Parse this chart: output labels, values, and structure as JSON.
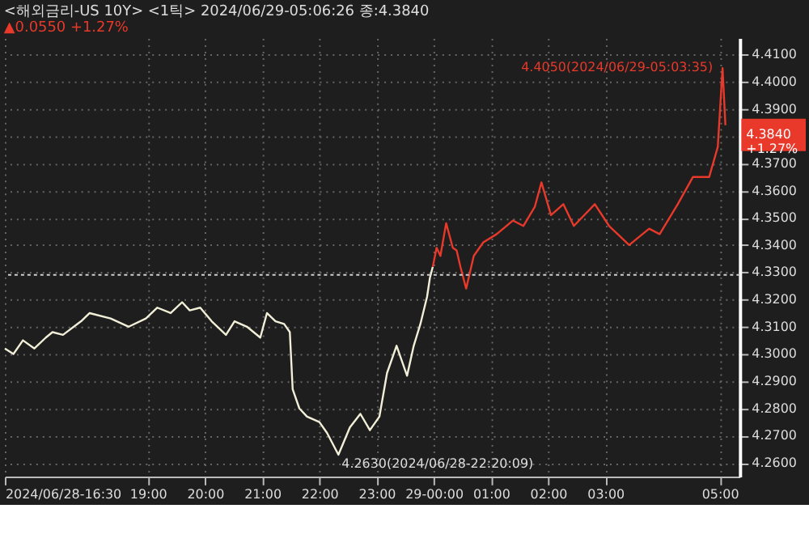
{
  "chart_data": {
    "type": "line",
    "title": "<해외금리-US 10Y> <1틱> 2024/06/29-05:06:26 종:4.3840",
    "subtitle": "▲0.0550 +1.27%",
    "xlim": [
      "2024-06-28T16:30",
      "2024-06-29T05:21"
    ],
    "ylim": [
      4.255,
      4.416
    ],
    "xticks": [
      {
        "value": "2024-06-28T16:30",
        "label": "2024/06/28-16:30"
      },
      {
        "value": "2024-06-28T19:00",
        "label": "19:00"
      },
      {
        "value": "2024-06-28T20:00",
        "label": "20:00"
      },
      {
        "value": "2024-06-28T21:00",
        "label": "21:00"
      },
      {
        "value": "2024-06-28T22:00",
        "label": "22:00"
      },
      {
        "value": "2024-06-28T23:00",
        "label": "23:00"
      },
      {
        "value": "2024-06-29T00:00",
        "label": "29-00:00"
      },
      {
        "value": "2024-06-29T01:00",
        "label": "01:00"
      },
      {
        "value": "2024-06-29T02:00",
        "label": "02:00"
      },
      {
        "value": "2024-06-29T03:00",
        "label": "03:00"
      },
      {
        "value": "2024-06-29T05:00",
        "label": "05:00"
      }
    ],
    "yticks": [
      {
        "value": 4.26,
        "label": "4.2600"
      },
      {
        "value": 4.27,
        "label": "4.2700"
      },
      {
        "value": 4.28,
        "label": "4.2800"
      },
      {
        "value": 4.29,
        "label": "4.2900"
      },
      {
        "value": 4.3,
        "label": "4.3000"
      },
      {
        "value": 4.31,
        "label": "4.3100"
      },
      {
        "value": 4.32,
        "label": "4.3200"
      },
      {
        "value": 4.33,
        "label": "4.3300"
      },
      {
        "value": 4.34,
        "label": "4.3400"
      },
      {
        "value": 4.35,
        "label": "4.3500"
      },
      {
        "value": 4.36,
        "label": "4.3600"
      },
      {
        "value": 4.37,
        "label": "4.3700"
      },
      {
        "value": 4.38,
        "label": null
      },
      {
        "value": 4.39,
        "label": "4.3900"
      },
      {
        "value": 4.4,
        "label": "4.4000"
      },
      {
        "value": 4.41,
        "label": "4.4100"
      }
    ],
    "grid": true,
    "series": [
      {
        "color": "#f2efd8",
        "x": [
          "2024-06-28T16:30",
          "2024-06-28T16:39",
          "2024-06-28T16:49",
          "2024-06-28T17:01",
          "2024-06-28T17:13",
          "2024-06-28T17:20",
          "2024-06-28T17:31",
          "2024-06-28T17:50",
          "2024-06-28T17:59",
          "2024-06-28T18:21",
          "2024-06-28T18:40",
          "2024-06-28T18:58",
          "2024-06-28T19:10",
          "2024-06-28T19:24",
          "2024-06-28T19:36",
          "2024-06-28T19:44",
          "2024-06-28T19:55",
          "2024-06-28T20:07",
          "2024-06-28T20:22",
          "2024-06-28T20:31",
          "2024-06-28T20:44",
          "2024-06-28T20:58",
          "2024-06-28T21:05",
          "2024-06-28T21:14",
          "2024-06-28T21:23",
          "2024-06-28T21:29",
          "2024-06-28T21:32",
          "2024-06-28T21:39",
          "2024-06-28T21:47",
          "2024-06-28T22:00",
          "2024-06-28T22:08",
          "2024-06-28T22:20",
          "2024-06-28T22:32",
          "2024-06-28T22:43",
          "2024-06-28T22:53",
          "2024-06-28T23:03",
          "2024-06-28T23:11",
          "2024-06-28T23:21",
          "2024-06-28T23:32",
          "2024-06-28T23:39",
          "2024-06-28T23:46",
          "2024-06-28T23:53",
          "2024-06-28T23:56",
          "2024-06-28T23:59"
        ],
        "values": [
          4.302,
          4.3,
          4.305,
          4.302,
          4.306,
          4.308,
          4.307,
          4.312,
          4.315,
          4.313,
          4.31,
          4.313,
          4.317,
          4.315,
          4.319,
          4.316,
          4.317,
          4.312,
          4.307,
          4.312,
          4.31,
          4.306,
          4.315,
          4.312,
          4.311,
          4.308,
          4.287,
          4.28,
          4.277,
          4.275,
          4.271,
          4.263,
          4.273,
          4.278,
          4.272,
          4.277,
          4.293,
          4.303,
          4.292,
          4.303,
          4.311,
          4.321,
          4.328,
          4.332
        ]
      },
      {
        "color": "#e8392b",
        "x": [
          "2024-06-28T23:59",
          "2024-06-29T00:03",
          "2024-06-29T00:07",
          "2024-06-29T00:13",
          "2024-06-29T00:20",
          "2024-06-29T00:24",
          "2024-06-29T00:28",
          "2024-06-29T00:34",
          "2024-06-29T00:42",
          "2024-06-29T00:52",
          "2024-06-29T01:06",
          "2024-06-29T01:23",
          "2024-06-29T01:34",
          "2024-06-29T01:46",
          "2024-06-29T01:53",
          "2024-06-29T02:03",
          "2024-06-29T02:16",
          "2024-06-29T02:27",
          "2024-06-29T02:49",
          "2024-06-29T03:04",
          "2024-06-29T03:25",
          "2024-06-29T03:46",
          "2024-06-29T03:57",
          "2024-06-29T04:16",
          "2024-06-29T04:32",
          "2024-06-29T04:49",
          "2024-06-29T04:58",
          "2024-06-29T05:03",
          "2024-06-29T05:06"
        ],
        "values": [
          4.332,
          4.339,
          4.336,
          4.348,
          4.339,
          4.338,
          4.332,
          4.324,
          4.336,
          4.341,
          4.344,
          4.349,
          4.347,
          4.354,
          4.363,
          4.351,
          4.355,
          4.347,
          4.355,
          4.347,
          4.34,
          4.346,
          4.344,
          4.355,
          4.365,
          4.365,
          4.376,
          4.405,
          4.384
        ]
      }
    ],
    "ref_lines": [
      {
        "axis": "y",
        "value": 4.329,
        "color": "#d0d0d0",
        "line_style": "dotted"
      }
    ],
    "annotations": [
      {
        "text": "4.2630(2024/06/28-22:20:09)",
        "x": "2024-06-28T22:20",
        "y": 4.263
      },
      {
        "text": "4.4050(2024/06/29-05:03:35)",
        "x": "2024-06-29T05:03",
        "y": 4.405
      },
      {
        "text": "4.3840\n+1.27%",
        "x": "2024-06-29T05:06",
        "y": 4.384
      }
    ]
  }
}
